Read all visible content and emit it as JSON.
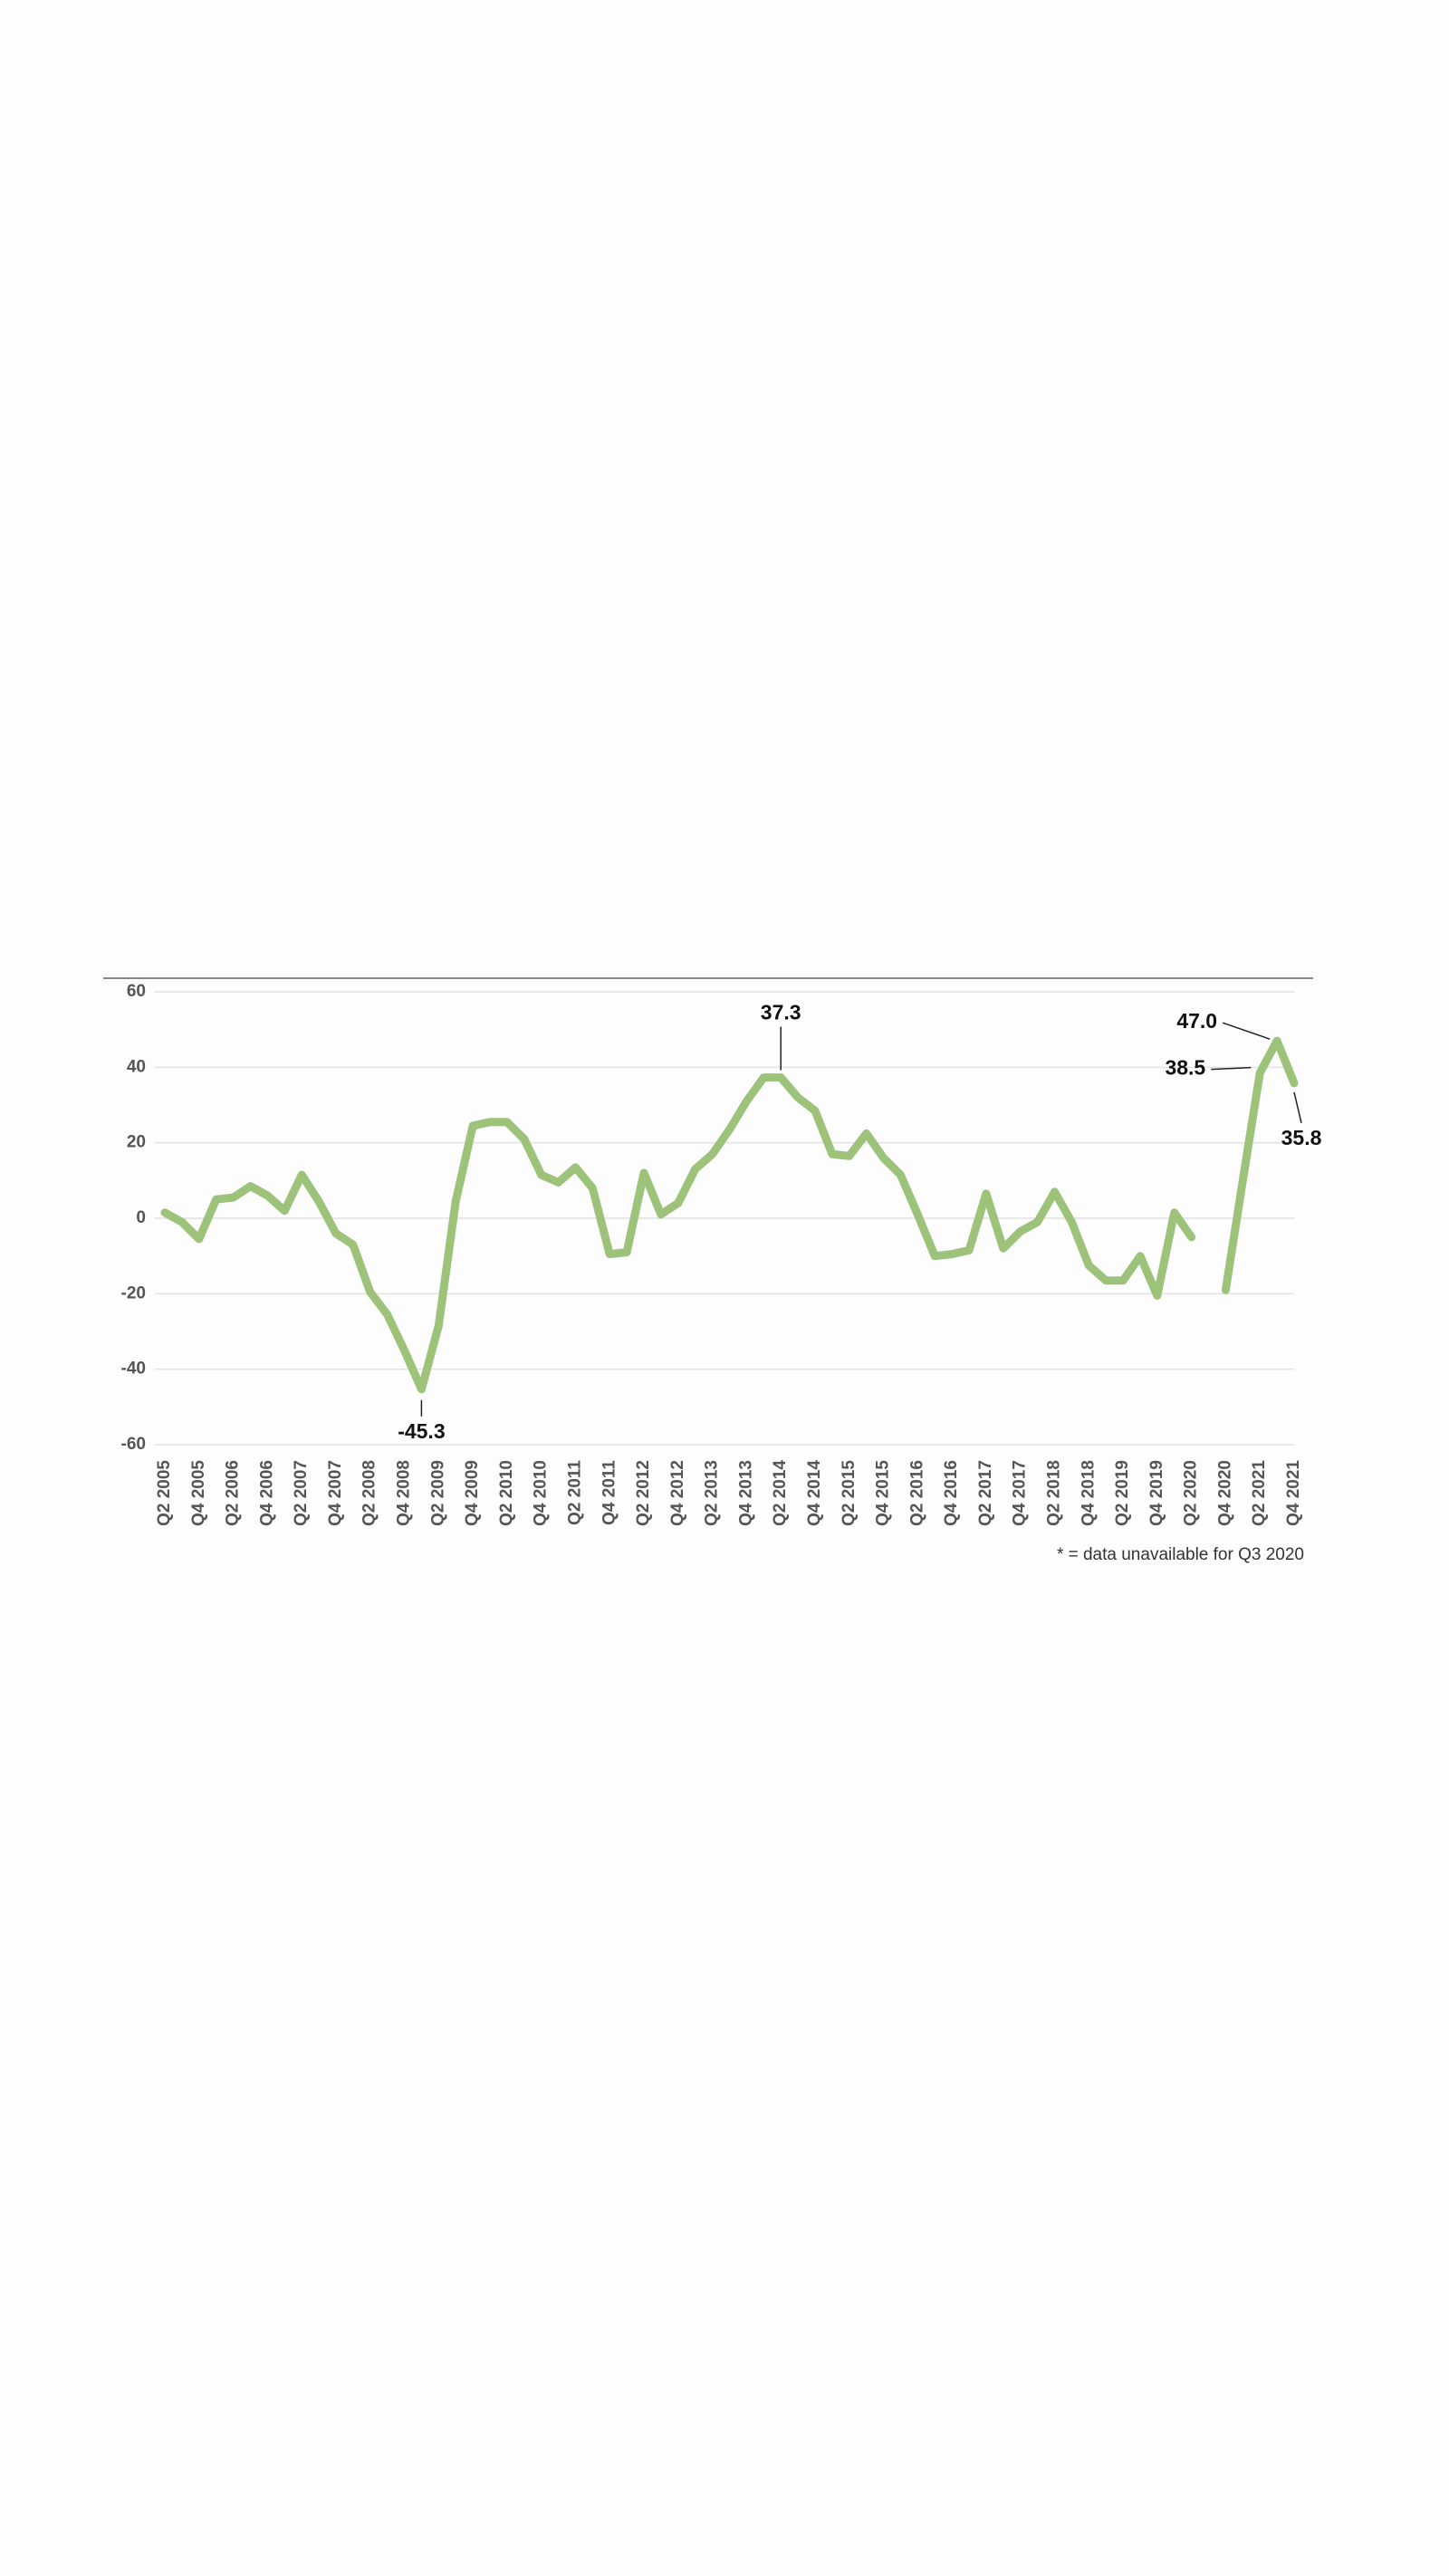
{
  "chart_data": {
    "type": "line",
    "categories": [
      "Q2 2005",
      null,
      "Q4 2005",
      null,
      "Q2 2006",
      null,
      "Q4 2006",
      null,
      "Q2 2007",
      null,
      "Q4 2007",
      null,
      "Q2 2008",
      null,
      "Q4 2008",
      null,
      "Q2 2009",
      null,
      "Q4 2009",
      null,
      "Q2 2010",
      null,
      "Q4 2010",
      null,
      "Q2 2011",
      null,
      "Q4 2011",
      null,
      "Q2 2012",
      null,
      "Q4 2012",
      null,
      "Q2 2013",
      null,
      "Q4 2013",
      null,
      "Q2 2014",
      null,
      "Q4 2014",
      null,
      "Q2 2015",
      null,
      "Q4 2015",
      null,
      "Q2 2016",
      null,
      "Q4 2016",
      null,
      "Q2 2017",
      null,
      "Q4 2017",
      null,
      "Q2 2018",
      null,
      "Q4 2018",
      null,
      "Q2 2019",
      null,
      "Q4 2019",
      null,
      "Q2 2020",
      null,
      "Q4 2020",
      null,
      "Q2 2021",
      null,
      "Q4 2021"
    ],
    "values": [
      1.5,
      -1,
      -5.5,
      5,
      5.5,
      8.5,
      6,
      2,
      11.5,
      4.5,
      -4,
      -7,
      -19.5,
      -25.5,
      -35,
      -45.3,
      -28.5,
      4.5,
      24.5,
      25.5,
      25.5,
      21,
      11.5,
      9.5,
      13.5,
      8,
      -9.5,
      -9,
      12,
      1,
      4,
      13,
      17,
      23.5,
      31,
      37.3,
      37.3,
      32,
      28.5,
      17,
      16.5,
      22.5,
      16,
      11.5,
      1,
      -10,
      -9.5,
      -8.5,
      6.5,
      -8,
      -3.5,
      -1,
      7,
      -1,
      -12.5,
      -16.5,
      -16.5,
      -10,
      -20.5,
      1.5,
      -5,
      null,
      -19,
      10,
      38.5,
      47.0,
      35.8
    ],
    "value_labels": [
      null,
      null,
      null,
      null,
      null,
      null,
      null,
      null,
      null,
      null,
      null,
      null,
      null,
      null,
      null,
      "-45.3",
      null,
      null,
      null,
      null,
      null,
      null,
      null,
      null,
      null,
      null,
      null,
      null,
      null,
      null,
      null,
      null,
      null,
      null,
      null,
      null,
      "37.3",
      null,
      null,
      null,
      null,
      null,
      null,
      null,
      null,
      null,
      null,
      null,
      null,
      null,
      null,
      null,
      null,
      null,
      null,
      null,
      null,
      null,
      null,
      null,
      null,
      null,
      null,
      null,
      "38.5",
      "47.0",
      "35.8"
    ],
    "color": "#9dc27a",
    "ylim": [
      -60,
      60
    ],
    "yticks": [
      -60,
      -40,
      -20,
      0,
      20,
      40,
      60
    ],
    "grid": true,
    "footnote": "* = data unavailable for Q3 2020"
  }
}
